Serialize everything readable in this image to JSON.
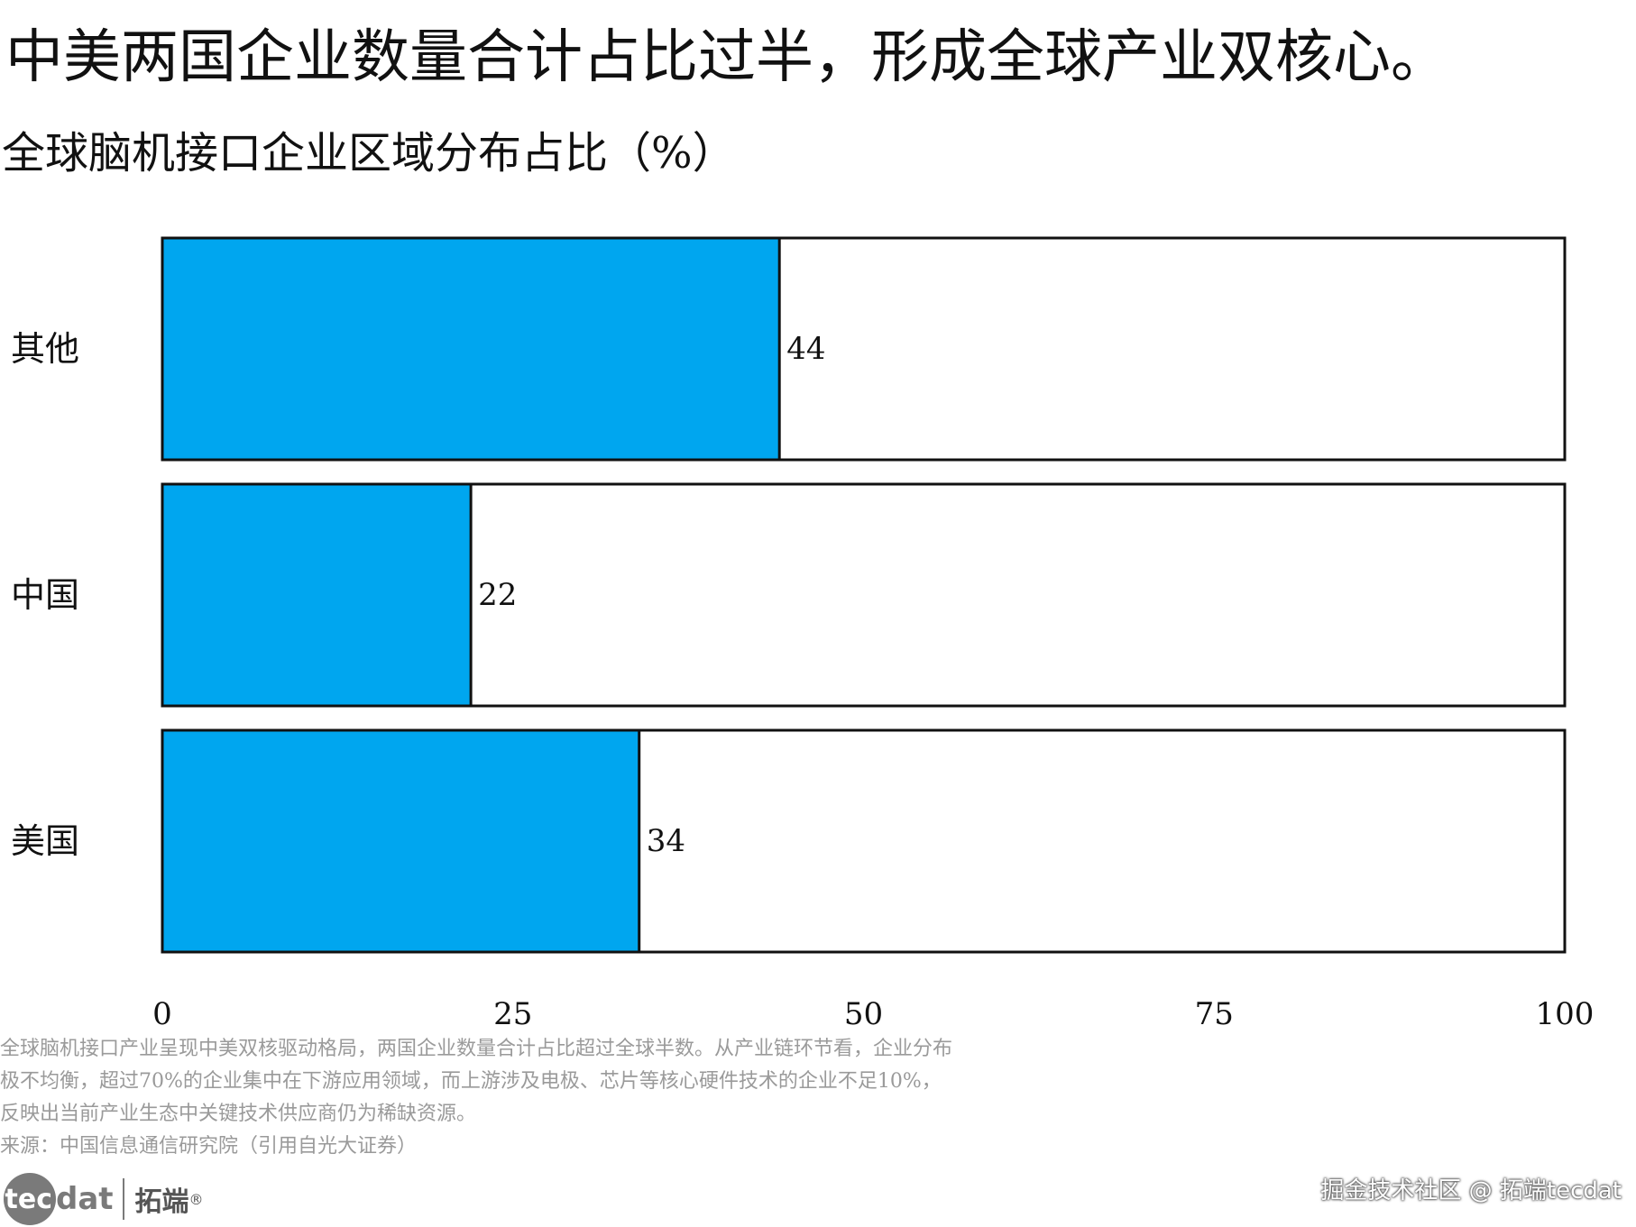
{
  "title": "中美两国企业数量合计占比过半，形成全球产业双核心。",
  "subtitle": "全球脑机接口企业区域分布占比（%）",
  "chart_data": {
    "type": "bar",
    "orientation": "horizontal",
    "categories": [
      "其他",
      "中国",
      "美国"
    ],
    "values": [
      44,
      22,
      34
    ],
    "xlim": [
      0,
      100
    ],
    "xticks": [
      "0",
      "25",
      "50",
      "75",
      "100"
    ],
    "bar_color": "#00a6ef",
    "track_color": "#ffffff",
    "outline_color": "#111111",
    "grid": false,
    "legend": "none"
  },
  "notes": [
    "全球脑机接口产业呈现中美双核驱动格局，两国企业数量合计占比超过全球半数。从产业链环节看，企业分布",
    "极不均衡，超过70%的企业集中在下游应用领域，而上游涉及电极、芯片等核心硬件技术的企业不足10%，",
    "反映出当前产业生态中关键技术供应商仍为稀缺资源。",
    "来源：中国信息通信研究院（引用自光大证券）"
  ],
  "footer": {
    "logo_circle_text": "tec",
    "logo_rest_text": "dat",
    "logo_cn": "拓端",
    "logo_reg": "®",
    "watermark": "掘金技术社区 @ 拓端tecdat"
  }
}
